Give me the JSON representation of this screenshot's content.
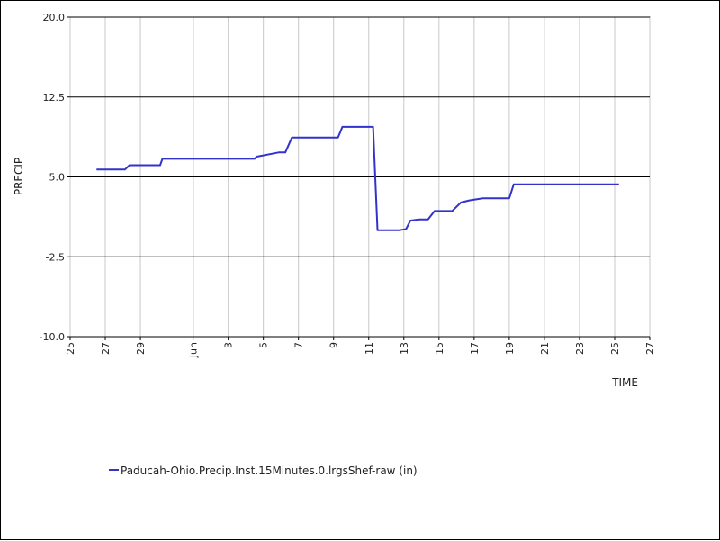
{
  "chart_data": {
    "type": "line",
    "xlabel": "TIME",
    "ylabel": "PRECIP",
    "ylim": [
      -10.0,
      20.0
    ],
    "yticks": [
      "-10.0",
      "-2.5",
      "5.0",
      "12.5",
      "20.0"
    ],
    "xlim": [
      "2023-05-25",
      "2023-06-27"
    ],
    "xticks": [
      {
        "date": "2023-05-25",
        "label": "25"
      },
      {
        "date": "2023-05-27",
        "label": "27"
      },
      {
        "date": "2023-05-29",
        "label": "29"
      },
      {
        "date": "2023-06-01",
        "label": "Jun"
      },
      {
        "date": "2023-06-03",
        "label": "3"
      },
      {
        "date": "2023-06-05",
        "label": "5"
      },
      {
        "date": "2023-06-07",
        "label": "7"
      },
      {
        "date": "2023-06-09",
        "label": "9"
      },
      {
        "date": "2023-06-11",
        "label": "11"
      },
      {
        "date": "2023-06-13",
        "label": "13"
      },
      {
        "date": "2023-06-15",
        "label": "15"
      },
      {
        "date": "2023-06-17",
        "label": "17"
      },
      {
        "date": "2023-06-19",
        "label": "19"
      },
      {
        "date": "2023-06-21",
        "label": "21"
      },
      {
        "date": "2023-06-23",
        "label": "23"
      },
      {
        "date": "2023-06-25",
        "label": "25"
      },
      {
        "date": "2023-06-27",
        "label": "27"
      }
    ],
    "grid": true,
    "legend_position": "bottom-left",
    "series": [
      {
        "name": "Paducah-Ohio.Precip.Inst.15Minutes.0.lrgsShef-raw (in)",
        "color": "#3333cc",
        "points": [
          [
            "2023-05-26 12:00",
            5.7
          ],
          [
            "2023-05-28 03:00",
            5.7
          ],
          [
            "2023-05-28 09:00",
            6.1
          ],
          [
            "2023-05-28 18:00",
            6.1
          ],
          [
            "2023-05-30 03:00",
            6.1
          ],
          [
            "2023-05-30 06:00",
            6.7
          ],
          [
            "2023-06-04 12:00",
            6.7
          ],
          [
            "2023-06-04 15:00",
            6.9
          ],
          [
            "2023-06-05 21:00",
            7.3
          ],
          [
            "2023-06-06 06:00",
            7.3
          ],
          [
            "2023-06-06 15:00",
            8.7
          ],
          [
            "2023-06-09 06:00",
            8.7
          ],
          [
            "2023-06-09 12:00",
            9.7
          ],
          [
            "2023-06-11 06:00",
            9.7
          ],
          [
            "2023-06-11 12:00",
            0.0
          ],
          [
            "2023-06-12 18:00",
            0.0
          ],
          [
            "2023-06-13 03:00",
            0.1
          ],
          [
            "2023-06-13 09:00",
            0.9
          ],
          [
            "2023-06-13 21:00",
            1.0
          ],
          [
            "2023-06-14 09:00",
            1.0
          ],
          [
            "2023-06-14 18:00",
            1.8
          ],
          [
            "2023-06-15 18:00",
            1.8
          ],
          [
            "2023-06-16 06:00",
            2.6
          ],
          [
            "2023-06-16 18:00",
            2.8
          ],
          [
            "2023-06-17 12:00",
            3.0
          ],
          [
            "2023-06-19 00:00",
            3.0
          ],
          [
            "2023-06-19 06:00",
            4.3
          ],
          [
            "2023-06-25 06:00",
            4.3
          ]
        ]
      }
    ]
  }
}
